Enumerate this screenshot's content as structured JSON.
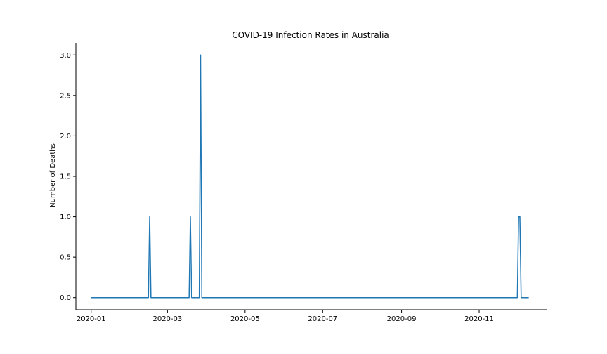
{
  "chart_data": {
    "type": "line",
    "title": "COVID-19 Infection Rates in Australia",
    "xlabel": "",
    "ylabel": "Number of Deaths",
    "x_ticks": [
      "2020-01",
      "2020-03",
      "2020-05",
      "2020-07",
      "2020-09",
      "2020-11"
    ],
    "y_ticks": [
      "0.0",
      "0.5",
      "1.0",
      "1.5",
      "2.0",
      "2.5",
      "3.0"
    ],
    "xlim": [
      "2019-12-20",
      "2020-12-24"
    ],
    "ylim": [
      -0.15,
      3.15
    ],
    "grid": false,
    "line_color": "#1f77b4",
    "series": [
      {
        "points": [
          [
            "2020-01-01",
            0
          ],
          [
            "2020-02-15",
            0
          ],
          [
            "2020-02-16",
            1
          ],
          [
            "2020-02-17",
            0
          ],
          [
            "2020-03-18",
            0
          ],
          [
            "2020-03-19",
            1
          ],
          [
            "2020-03-20",
            0
          ],
          [
            "2020-03-26",
            0
          ],
          [
            "2020-03-27",
            3
          ],
          [
            "2020-03-28",
            0
          ],
          [
            "2020-12-01",
            0
          ],
          [
            "2020-12-02",
            1
          ],
          [
            "2020-12-03",
            1
          ],
          [
            "2020-12-04",
            0
          ],
          [
            "2020-12-10",
            0
          ]
        ]
      }
    ]
  }
}
